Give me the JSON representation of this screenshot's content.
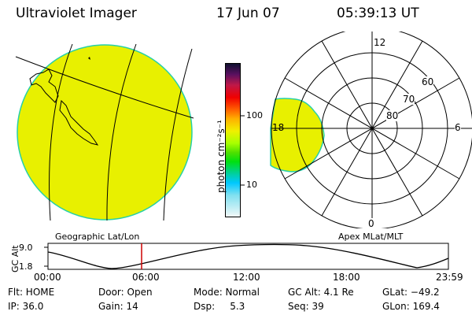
{
  "header": {
    "title": "Ultraviolet Imager",
    "date": "17 Jun 07",
    "time": "05:39:13 UT"
  },
  "colorbar": {
    "unit_label": "photon cm⁻²s⁻¹",
    "ticks": [
      "100",
      "10"
    ]
  },
  "polar_plot": {
    "labels": {
      "top": "12",
      "bottom": "0",
      "left": "18",
      "right": "6"
    },
    "lat_labels": [
      "60",
      "70",
      "80"
    ],
    "caption": "Apex MLat/MLT"
  },
  "geo_plot": {
    "caption": "Geographic Lat/Lon"
  },
  "altitude_strip": {
    "ylabel": "GC Alt",
    "y_ticks": [
      "9.0",
      "1.8"
    ],
    "x_ticks": [
      "00:00",
      "06:00",
      "12:00",
      "18:00",
      "23:59"
    ]
  },
  "status": {
    "flt": "Flt: HOME",
    "ip": "IP: 36.0",
    "door": "Door: Open",
    "gain": "Gain: 14",
    "mode": "Mode: Normal",
    "dsp": "Dsp:     5.3",
    "gc_alt": "GC Alt: 4.1 Re",
    "seq": "Seq: 39",
    "glat": "GLat: −49.2",
    "glon": "GLon: 169.4"
  },
  "colors": {
    "fill": "#e8f000",
    "edge": "#26d0a8",
    "marker": "#cc0000"
  }
}
